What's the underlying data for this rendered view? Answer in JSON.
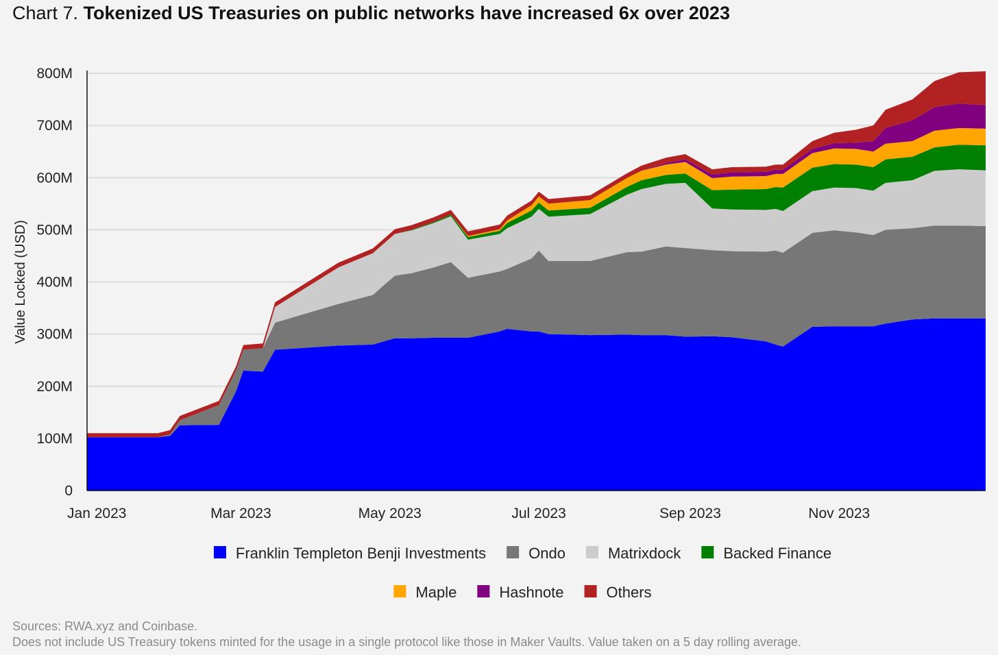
{
  "title": {
    "prefix": "Chart 7.",
    "main": "Tokenized US Treasuries on public networks have increased 6x over 2023"
  },
  "footer": {
    "sources": "Sources: RWA.xyz and Coinbase.",
    "note": "Does not include US Treasury tokens minted for the usage in a single protocol like those in Maker Vaults. Value taken on a 5 day rolling average."
  },
  "chart_data": {
    "type": "area",
    "stacked": true,
    "ylabel": "Value Locked (USD)",
    "xlabel": "",
    "ylim": [
      0,
      800000000
    ],
    "xlim": [
      "2022-12-28",
      "2023-12-31"
    ],
    "grid": true,
    "legend_position": "bottom",
    "y_ticks": [
      {
        "value": 0,
        "label": "0"
      },
      {
        "value": 100000000,
        "label": "100M"
      },
      {
        "value": 200000000,
        "label": "200M"
      },
      {
        "value": 300000000,
        "label": "300M"
      },
      {
        "value": 400000000,
        "label": "400M"
      },
      {
        "value": 500000000,
        "label": "500M"
      },
      {
        "value": 600000000,
        "label": "600M"
      },
      {
        "value": 700000000,
        "label": "700M"
      },
      {
        "value": 800000000,
        "label": "800M"
      }
    ],
    "x_ticks": [
      {
        "value": "2023-01-01",
        "label": "Jan 2023"
      },
      {
        "value": "2023-03-01",
        "label": "Mar 2023"
      },
      {
        "value": "2023-05-01",
        "label": "May 2023"
      },
      {
        "value": "2023-07-01",
        "label": "Jul 2023"
      },
      {
        "value": "2023-09-01",
        "label": "Sep 2023"
      },
      {
        "value": "2023-11-01",
        "label": "Nov 2023"
      }
    ],
    "x": [
      "2022-12-28",
      "2023-01-26",
      "2023-01-31",
      "2023-02-04",
      "2023-02-20",
      "2023-02-27",
      "2023-03-02",
      "2023-03-10",
      "2023-03-15",
      "2023-04-10",
      "2023-04-24",
      "2023-05-03",
      "2023-05-10",
      "2023-05-19",
      "2023-05-26",
      "2023-06-02",
      "2023-06-15",
      "2023-06-18",
      "2023-06-28",
      "2023-07-01",
      "2023-07-05",
      "2023-07-22",
      "2023-08-06",
      "2023-08-12",
      "2023-08-22",
      "2023-08-30",
      "2023-09-10",
      "2023-09-18",
      "2023-10-02",
      "2023-10-06",
      "2023-10-09",
      "2023-10-21",
      "2023-10-30",
      "2023-11-08",
      "2023-11-15",
      "2023-11-20",
      "2023-12-01",
      "2023-12-10",
      "2023-12-20",
      "2023-12-31"
    ],
    "series": [
      {
        "name": "Franklin Templeton Benji Investments",
        "color": "#0000ff",
        "values": [
          102,
          102,
          105,
          125,
          126,
          190,
          230,
          228,
          270,
          278,
          280,
          292,
          292,
          293,
          293,
          293,
          305,
          310,
          305,
          305,
          300,
          298,
          299,
          298,
          298,
          295,
          296,
          294,
          286,
          280,
          276,
          314,
          315,
          315,
          315,
          320,
          328,
          330,
          330,
          330
        ]
      },
      {
        "name": "Ondo",
        "color": "#777777",
        "values": [
          0,
          0,
          3,
          10,
          38,
          40,
          40,
          45,
          52,
          80,
          95,
          120,
          125,
          135,
          145,
          115,
          115,
          115,
          140,
          155,
          140,
          142,
          158,
          160,
          170,
          170,
          165,
          165,
          172,
          180,
          180,
          180,
          184,
          180,
          175,
          180,
          175,
          178,
          178,
          177
        ]
      },
      {
        "name": "Matrixdock",
        "color": "#cccccc",
        "values": [
          0,
          0,
          0,
          0,
          0,
          0,
          0,
          0,
          30,
          70,
          80,
          80,
          82,
          85,
          88,
          73,
          72,
          78,
          80,
          80,
          85,
          90,
          110,
          120,
          120,
          125,
          80,
          80,
          80,
          80,
          80,
          80,
          82,
          85,
          85,
          90,
          92,
          105,
          108,
          107
        ]
      },
      {
        "name": "Backed Finance",
        "color": "#008000",
        "values": [
          0,
          0,
          0,
          0,
          0,
          0,
          0,
          0,
          0,
          0,
          0,
          0,
          1,
          2,
          3,
          5,
          6,
          10,
          12,
          12,
          12,
          12,
          15,
          17,
          17,
          18,
          35,
          38,
          40,
          42,
          45,
          45,
          45,
          45,
          45,
          45,
          45,
          45,
          47,
          48
        ]
      },
      {
        "name": "Maple",
        "color": "#ffa500",
        "values": [
          0,
          0,
          0,
          0,
          0,
          0,
          0,
          0,
          0,
          0,
          0,
          0,
          0,
          0,
          0,
          2,
          3,
          5,
          10,
          12,
          13,
          15,
          17,
          18,
          20,
          22,
          23,
          25,
          25,
          25,
          26,
          28,
          30,
          30,
          30,
          30,
          30,
          32,
          32,
          32
        ]
      },
      {
        "name": "Hashnote",
        "color": "#800080",
        "values": [
          0,
          0,
          0,
          0,
          0,
          0,
          0,
          0,
          0,
          0,
          0,
          0,
          0,
          0,
          0,
          0,
          0,
          0,
          0,
          0,
          0,
          0,
          0,
          0,
          3,
          5,
          7,
          8,
          8,
          8,
          8,
          8,
          10,
          12,
          20,
          30,
          40,
          45,
          47,
          45
        ]
      },
      {
        "name": "Others",
        "color": "#b22222",
        "values": [
          8,
          8,
          8,
          8,
          8,
          8,
          9,
          9,
          9,
          9,
          9,
          9,
          9,
          9,
          9,
          9,
          9,
          9,
          9,
          9,
          9,
          9,
          9,
          10,
          10,
          10,
          10,
          10,
          10,
          10,
          10,
          15,
          20,
          25,
          30,
          35,
          40,
          50,
          60,
          65
        ]
      }
    ],
    "value_unit_multiplier": 1000000
  }
}
